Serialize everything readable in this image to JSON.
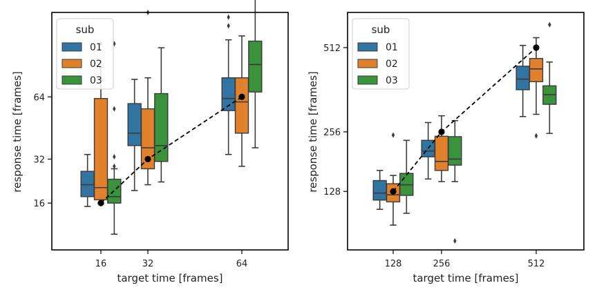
{
  "chart_data": [
    {
      "type": "box",
      "xlabel": "target time [frames]",
      "ylabel": "response time [frames]",
      "categories": [
        "16",
        "32",
        "64"
      ],
      "ylim": [
        5,
        125
      ],
      "yticks": [
        16,
        32,
        64
      ],
      "legend": {
        "title": "sub",
        "position": "top-left"
      },
      "series": [
        {
          "name": "01",
          "color": "#3274a1",
          "boxes": [
            {
              "whislo": 15,
              "q1": 18,
              "med": 22,
              "q3": 27,
              "whishi": 34,
              "fliers": []
            },
            {
              "whislo": 20,
              "q1": 38,
              "med": 44,
              "q3": 60,
              "whishi": 75,
              "fliers": []
            },
            {
              "whislo": 34,
              "q1": 56,
              "med": 63,
              "q3": 76,
              "whishi": 103,
              "fliers": [
                114,
                121
              ]
            }
          ]
        },
        {
          "name": "02",
          "color": "#e1812c",
          "boxes": [
            {
              "whislo": 16,
              "q1": 17,
              "med": 21,
              "q3": 63,
              "whishi": 83,
              "fliers": [
                100,
                141
              ]
            },
            {
              "whislo": 22,
              "q1": 28,
              "med": 37,
              "q3": 57,
              "whishi": 76,
              "fliers": [
                125,
                165
              ]
            },
            {
              "whislo": 29,
              "q1": 44,
              "med": 61,
              "q3": 76,
              "whishi": 106,
              "fliers": []
            }
          ]
        },
        {
          "name": "03",
          "color": "#3a923a",
          "boxes": [
            {
              "whislo": 8,
              "q1": 16,
              "med": 18,
              "q3": 24,
              "whishi": 28,
              "fliers": [
                29,
                33,
                57,
                100
              ]
            },
            {
              "whislo": 23,
              "q1": 31,
              "med": 38,
              "q3": 66,
              "whishi": 97,
              "fliers": []
            },
            {
              "whislo": 37,
              "q1": 67,
              "med": 85,
              "q3": 102,
              "whishi": 147,
              "fliers": []
            }
          ]
        }
      ],
      "reference": {
        "x": [
          16,
          32,
          64
        ],
        "y": [
          16,
          32,
          64
        ]
      }
    },
    {
      "type": "box",
      "xlabel": "target time [frames]",
      "ylabel": "response time [frames]",
      "categories": [
        "128",
        "256",
        "512"
      ],
      "ylim": [
        45,
        645
      ],
      "yticks": [
        128,
        256,
        512
      ],
      "legend": {
        "title": "sub",
        "position": "top-left"
      },
      "series": [
        {
          "name": "01",
          "color": "#3274a1",
          "boxes": [
            {
              "whislo": 98,
              "q1": 113,
              "med": 125,
              "q3": 148,
              "whishi": 168,
              "fliers": []
            },
            {
              "whislo": 151,
              "q1": 197,
              "med": 210,
              "q3": 235,
              "whishi": 280,
              "fliers": []
            },
            {
              "whislo": 296,
              "q1": 373,
              "med": 406,
              "q3": 448,
              "whishi": 520,
              "fliers": []
            }
          ]
        },
        {
          "name": "02",
          "color": "#e1812c",
          "boxes": [
            {
              "whislo": 75,
              "q1": 110,
              "med": 122,
              "q3": 142,
              "whishi": 158,
              "fliers": [
                248
              ]
            },
            {
              "whislo": 146,
              "q1": 168,
              "med": 187,
              "q3": 245,
              "whishi": 298,
              "fliers": []
            },
            {
              "whislo": 302,
              "q1": 398,
              "med": 439,
              "q3": 474,
              "whishi": 548,
              "fliers": [
                246
              ]
            }
          ]
        },
        {
          "name": "03",
          "color": "#3a923a",
          "boxes": [
            {
              "whislo": 92,
              "q1": 121,
              "med": 140,
              "q3": 162,
              "whishi": 235,
              "fliers": []
            },
            {
              "whislo": 146,
              "q1": 179,
              "med": 192,
              "q3": 244,
              "whishi": 285,
              "fliers": [
                55
              ]
            },
            {
              "whislo": 252,
              "q1": 330,
              "med": 358,
              "q3": 385,
              "whishi": 462,
              "fliers": [
                597
              ]
            }
          ]
        }
      ],
      "reference": {
        "x": [
          128,
          256,
          512
        ],
        "y": [
          128,
          256,
          512
        ]
      }
    }
  ]
}
